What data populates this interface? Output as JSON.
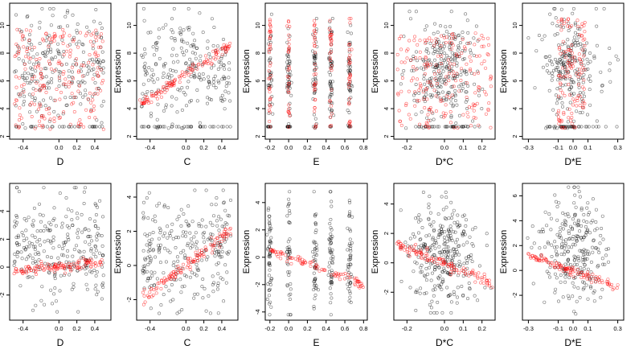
{
  "figure": {
    "colors": {
      "observed": "#000000",
      "fitted": "#ff0000"
    }
  },
  "chart_data": [
    {
      "type": "scatter",
      "xlabel": "D",
      "ylabel": "Expression",
      "xlim": [
        -0.55,
        0.58
      ],
      "ylim": [
        1.8,
        11.6
      ],
      "xticks": [
        -0.4,
        0.0,
        0.2,
        0.4
      ],
      "xtick_labels": [
        "-0.4",
        "0.0",
        "0.2",
        "0.4"
      ],
      "yticks": [
        2,
        4,
        6,
        8,
        10
      ],
      "ytick_labels": [
        "2",
        "4",
        "6",
        "8",
        "10"
      ],
      "series": [
        {
          "role": "observed",
          "color": "#000000",
          "x_range": [
            -0.5,
            0.5
          ],
          "y_range": [
            2.6,
            11.2
          ],
          "floor": 2.7,
          "count": 260
        },
        {
          "role": "fitted",
          "color": "#ff0000",
          "x_range": [
            -0.5,
            0.5
          ],
          "y_range": [
            2.5,
            9.7
          ],
          "count": 210
        }
      ]
    },
    {
      "type": "scatter",
      "xlabel": "C",
      "ylabel": "Expression",
      "xlim": [
        -0.55,
        0.58
      ],
      "ylim": [
        1.8,
        11.6
      ],
      "xticks": [
        -0.4,
        0.0,
        0.2,
        0.4
      ],
      "xtick_labels": [
        "-0.4",
        "0.0",
        "0.2",
        "0.4"
      ],
      "yticks": [
        2,
        4,
        6,
        8,
        10
      ],
      "ytick_labels": [
        "2",
        "4",
        "6",
        "8",
        "10"
      ],
      "series": [
        {
          "role": "observed",
          "color": "#000000",
          "x_range": [
            -0.5,
            0.5
          ],
          "y_range": [
            2.6,
            11.2
          ],
          "floor": 2.7,
          "count": 260
        },
        {
          "role": "fitted",
          "color": "#ff0000",
          "trend": [
            [
              -0.5,
              4.3
            ],
            [
              0.5,
              8.6
            ]
          ],
          "count": 120
        }
      ]
    },
    {
      "type": "scatter",
      "xlabel": "E",
      "ylabel": "Expression",
      "xlim": [
        -0.25,
        0.84
      ],
      "ylim": [
        1.8,
        11.6
      ],
      "xticks": [
        -0.2,
        0.0,
        0.2,
        0.4,
        0.6,
        0.8
      ],
      "xtick_labels": [
        "-0.2",
        "0.0",
        "0.2",
        "0.4",
        "0.6",
        "0.8"
      ],
      "yticks": [
        2,
        4,
        6,
        8,
        10
      ],
      "ytick_labels": [
        "2",
        "4",
        "6",
        "8",
        "10"
      ],
      "series": [
        {
          "role": "observed",
          "color": "#000000",
          "x_clusters": [
            -0.2,
            0.0,
            0.28,
            0.45,
            0.65
          ],
          "y_range": [
            2.6,
            10.8
          ],
          "floor": 2.7,
          "count": 240
        },
        {
          "role": "fitted",
          "color": "#ff0000",
          "x_clusters": [
            -0.2,
            0.0,
            0.28,
            0.45,
            0.65
          ],
          "y_range": [
            2.6,
            10.5
          ],
          "count": 160
        }
      ]
    },
    {
      "type": "scatter",
      "xlabel": "D*C",
      "ylabel": "Expression",
      "xlim": [
        -0.27,
        0.27
      ],
      "ylim": [
        1.8,
        11.6
      ],
      "xticks": [
        -0.2,
        0.0,
        0.1,
        0.2
      ],
      "xtick_labels": [
        "-0.2",
        "0.0",
        "0.1",
        "0.2"
      ],
      "yticks": [
        2,
        4,
        6,
        8,
        10
      ],
      "ytick_labels": [
        "2",
        "4",
        "6",
        "8",
        "10"
      ],
      "series": [
        {
          "role": "observed",
          "color": "#000000",
          "x_range": [
            -0.25,
            0.25
          ],
          "y_range": [
            2.6,
            11.0
          ],
          "floor": 2.7,
          "count": 300
        },
        {
          "role": "fitted",
          "color": "#ff0000",
          "x_range": [
            -0.25,
            0.25
          ],
          "y_range": [
            2.6,
            9.5
          ],
          "count": 200
        }
      ]
    },
    {
      "type": "scatter",
      "xlabel": "D*E",
      "ylabel": "Expression",
      "xlim": [
        -0.34,
        0.34
      ],
      "ylim": [
        1.8,
        11.6
      ],
      "xticks": [
        -0.3,
        -0.1,
        0.0,
        0.1,
        0.3
      ],
      "xtick_labels": [
        "-0.3",
        "-0.1",
        "0.0",
        "0.1",
        "0.3"
      ],
      "yticks": [
        2,
        4,
        6,
        8,
        10
      ],
      "ytick_labels": [
        "2",
        "4",
        "6",
        "8",
        "10"
      ],
      "series": [
        {
          "role": "observed",
          "color": "#000000",
          "x_range": [
            -0.3,
            0.3
          ],
          "y_range": [
            2.6,
            11.2
          ],
          "floor": 2.7,
          "count": 260
        },
        {
          "role": "fitted",
          "color": "#ff0000",
          "x_range": [
            -0.1,
            0.08
          ],
          "y_range": [
            2.6,
            10.5
          ],
          "count": 120
        }
      ]
    },
    {
      "type": "scatter",
      "xlabel": "D",
      "ylabel": "Expression",
      "xlim": [
        -0.55,
        0.58
      ],
      "ylim": [
        -3.8,
        6.0
      ],
      "xticks": [
        -0.4,
        0.0,
        0.2,
        0.4
      ],
      "xtick_labels": [
        "-0.4",
        "0.0",
        "0.2",
        "0.4"
      ],
      "yticks": [
        -2,
        0,
        2,
        4
      ],
      "ytick_labels": [
        "-2",
        "0",
        "2",
        "4"
      ],
      "series": [
        {
          "role": "observed",
          "color": "#000000",
          "x_range": [
            -0.5,
            0.5
          ],
          "y_range": [
            -3.2,
            5.7
          ],
          "count": 260
        },
        {
          "role": "fitted",
          "color": "#ff0000",
          "trend": [
            [
              -0.5,
              -0.3
            ],
            [
              0.5,
              0.35
            ]
          ],
          "count": 120
        }
      ]
    },
    {
      "type": "scatter",
      "xlabel": "C",
      "ylabel": "Expression",
      "xlim": [
        -0.55,
        0.58
      ],
      "ylim": [
        -3.2,
        4.8
      ],
      "xticks": [
        -0.4,
        0.0,
        0.2,
        0.4
      ],
      "xtick_labels": [
        "-0.4",
        "0.0",
        "0.2",
        "0.4"
      ],
      "yticks": [
        -2,
        0,
        2,
        4
      ],
      "ytick_labels": [
        "-2",
        "0",
        "2",
        "4"
      ],
      "series": [
        {
          "role": "observed",
          "color": "#000000",
          "x_range": [
            -0.5,
            0.5
          ],
          "y_range": [
            -2.8,
            4.4
          ],
          "count": 260
        },
        {
          "role": "fitted",
          "color": "#ff0000",
          "trend": [
            [
              -0.5,
              -2.0
            ],
            [
              0.5,
              2.0
            ]
          ],
          "count": 120
        }
      ]
    },
    {
      "type": "scatter",
      "xlabel": "E",
      "ylabel": "Expression",
      "xlim": [
        -0.25,
        0.84
      ],
      "ylim": [
        -4.6,
        5.4
      ],
      "xticks": [
        -0.2,
        0.0,
        0.2,
        0.4,
        0.6,
        0.8
      ],
      "xtick_labels": [
        "-0.2",
        "0.0",
        "0.2",
        "0.4",
        "0.6",
        "0.8"
      ],
      "yticks": [
        -4,
        -2,
        0,
        2,
        4
      ],
      "ytick_labels": [
        "-4",
        "-2",
        "0",
        "2",
        "4"
      ],
      "series": [
        {
          "role": "observed",
          "color": "#000000",
          "x_clusters": [
            -0.2,
            0.0,
            0.28,
            0.45,
            0.65
          ],
          "y_range": [
            -4.2,
            4.8
          ],
          "count": 240
        },
        {
          "role": "fitted",
          "color": "#ff0000",
          "trend": [
            [
              -0.2,
              0.5
            ],
            [
              0.8,
              -2.0
            ]
          ],
          "count": 90
        }
      ]
    },
    {
      "type": "scatter",
      "xlabel": "D*C",
      "ylabel": "Expression",
      "xlim": [
        -0.27,
        0.27
      ],
      "ylim": [
        -3.9,
        5.4
      ],
      "xticks": [
        -0.2,
        0.0,
        0.1,
        0.2
      ],
      "xtick_labels": [
        "-0.2",
        "0.0",
        "0.1",
        "0.2"
      ],
      "yticks": [
        -2,
        0,
        2,
        4
      ],
      "ytick_labels": [
        "-2",
        "0",
        "2",
        "4"
      ],
      "series": [
        {
          "role": "observed",
          "color": "#000000",
          "x_range": [
            -0.25,
            0.25
          ],
          "y_range": [
            -3.4,
            4.8
          ],
          "count": 300
        },
        {
          "role": "fitted",
          "color": "#ff0000",
          "trend": [
            [
              -0.25,
              1.3
            ],
            [
              0.25,
              -1.4
            ]
          ],
          "count": 120
        }
      ]
    },
    {
      "type": "scatter",
      "xlabel": "D*E",
      "ylabel": "Expression",
      "xlim": [
        -0.34,
        0.34
      ],
      "ylim": [
        -4.0,
        7.0
      ],
      "xticks": [
        -0.3,
        -0.1,
        0.0,
        0.1,
        0.3
      ],
      "xtick_labels": [
        "-0.3",
        "-0.1",
        "0.0",
        "0.1",
        "0.3"
      ],
      "yticks": [
        -2,
        0,
        2,
        4,
        6
      ],
      "ytick_labels": [
        "-2",
        "0",
        "2",
        "4",
        "6"
      ],
      "series": [
        {
          "role": "observed",
          "color": "#000000",
          "x_range": [
            -0.3,
            0.3
          ],
          "y_range": [
            -3.5,
            6.7
          ],
          "count": 260
        },
        {
          "role": "fitted",
          "color": "#ff0000",
          "trend": [
            [
              -0.3,
              1.2
            ],
            [
              0.3,
              -1.3
            ]
          ],
          "count": 110
        }
      ]
    }
  ]
}
